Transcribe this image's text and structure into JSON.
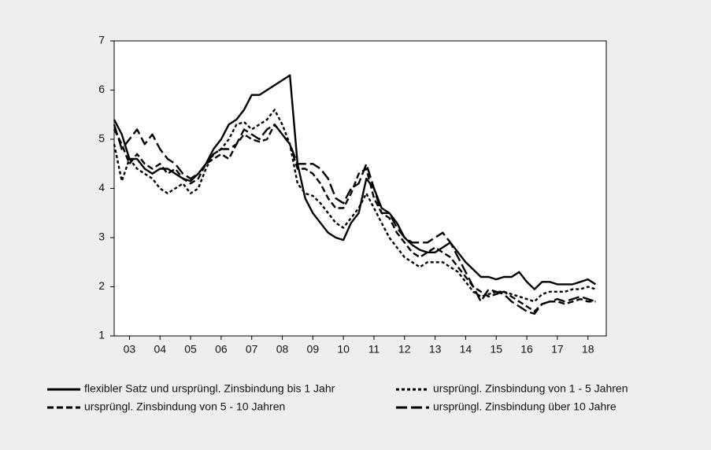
{
  "chart_data": {
    "type": "line",
    "x": [
      2003,
      2003.25,
      2003.5,
      2003.75,
      2004,
      2004.25,
      2004.5,
      2004.75,
      2005,
      2005.25,
      2005.5,
      2005.75,
      2006,
      2006.25,
      2006.5,
      2006.75,
      2007,
      2007.25,
      2007.5,
      2007.75,
      2008,
      2008.25,
      2008.5,
      2008.75,
      2009,
      2009.25,
      2009.5,
      2009.75,
      2010,
      2010.25,
      2010.5,
      2010.75,
      2011,
      2011.25,
      2011.5,
      2011.75,
      2012,
      2012.25,
      2012.5,
      2012.75,
      2013,
      2013.25,
      2013.5,
      2013.75,
      2014,
      2014.25,
      2014.5,
      2014.75,
      2015,
      2015.25,
      2015.5,
      2015.75,
      2016,
      2016.25,
      2016.5,
      2016.75,
      2017,
      2017.25,
      2017.5,
      2017.75,
      2018,
      2018.25,
      2018.5,
      2018.75
    ],
    "series": [
      {
        "name": "flexibler Satz und ursprüngl. Zinsbindung bis 1 Jahr",
        "color": "#000000",
        "dash": "solid",
        "values": [
          5.4,
          5.1,
          4.6,
          4.6,
          4.4,
          4.3,
          4.4,
          4.4,
          4.3,
          4.2,
          4.15,
          4.3,
          4.5,
          4.8,
          5.0,
          5.3,
          5.4,
          5.6,
          5.9,
          5.9,
          6.0,
          6.1,
          6.2,
          6.3,
          4.5,
          3.8,
          3.5,
          3.3,
          3.1,
          3.0,
          2.95,
          3.3,
          3.5,
          4.2,
          4.0,
          3.6,
          3.5,
          3.3,
          3.0,
          2.85,
          2.75,
          2.7,
          2.7,
          2.8,
          2.9,
          2.7,
          2.5,
          2.35,
          2.2,
          2.2,
          2.15,
          2.2,
          2.2,
          2.3,
          2.1,
          1.95,
          2.1,
          2.1,
          2.05,
          2.05,
          2.05,
          2.1,
          2.15,
          2.05
        ]
      },
      {
        "name": "ursprüngl. Zinsbindung von 1 - 5 Jahren",
        "color": "#000000",
        "dash": "short",
        "values": [
          4.9,
          4.15,
          4.6,
          4.4,
          4.3,
          4.2,
          4.0,
          3.9,
          4.0,
          4.1,
          3.9,
          4.0,
          4.4,
          4.7,
          4.8,
          5.0,
          5.3,
          5.35,
          5.2,
          5.3,
          5.4,
          5.6,
          5.3,
          4.9,
          4.1,
          3.9,
          3.85,
          3.7,
          3.5,
          3.3,
          3.2,
          3.4,
          3.6,
          3.9,
          3.6,
          3.3,
          3.0,
          2.8,
          2.6,
          2.5,
          2.4,
          2.5,
          2.5,
          2.5,
          2.4,
          2.3,
          2.1,
          1.9,
          1.8,
          1.85,
          1.9,
          1.9,
          1.85,
          1.8,
          1.75,
          1.7,
          1.85,
          1.9,
          1.9,
          1.9,
          1.95,
          1.95,
          2.0,
          1.95
        ]
      },
      {
        "name": "ursprüngl. Zinsbindung von 5 - 10 Jahren",
        "color": "#000000",
        "dash": "medium",
        "values": [
          5.2,
          4.9,
          4.5,
          4.7,
          4.5,
          4.4,
          4.5,
          4.3,
          4.4,
          4.2,
          4.1,
          4.2,
          4.5,
          4.6,
          4.7,
          4.6,
          4.9,
          5.1,
          5.0,
          4.95,
          5.0,
          5.3,
          5.1,
          4.9,
          4.4,
          4.4,
          4.3,
          4.1,
          3.8,
          3.6,
          3.6,
          3.9,
          4.3,
          4.4,
          3.8,
          3.5,
          3.4,
          3.1,
          2.9,
          2.7,
          2.6,
          2.7,
          2.8,
          2.7,
          2.6,
          2.4,
          2.2,
          2.0,
          1.9,
          1.8,
          1.85,
          1.9,
          1.8,
          1.7,
          1.6,
          1.5,
          1.65,
          1.7,
          1.7,
          1.65,
          1.7,
          1.75,
          1.7,
          1.7
        ]
      },
      {
        "name": "ursprüngl. Zinsbindung über 10 Jahre",
        "color": "#000000",
        "dash": "long",
        "values": [
          5.3,
          4.8,
          5.0,
          5.2,
          4.9,
          5.1,
          4.8,
          4.6,
          4.5,
          4.3,
          4.2,
          4.3,
          4.5,
          4.7,
          4.8,
          4.8,
          4.9,
          5.2,
          5.1,
          5.0,
          5.2,
          5.3,
          5.1,
          4.9,
          4.5,
          4.5,
          4.5,
          4.4,
          4.2,
          3.8,
          3.7,
          4.0,
          4.1,
          4.5,
          4.0,
          3.5,
          3.5,
          3.2,
          3.0,
          2.9,
          2.9,
          2.9,
          3.0,
          3.1,
          2.9,
          2.6,
          2.3,
          2.0,
          1.7,
          1.95,
          1.9,
          1.85,
          1.7,
          1.6,
          1.5,
          1.45,
          1.65,
          1.7,
          1.75,
          1.7,
          1.75,
          1.8,
          1.75,
          1.7
        ]
      }
    ],
    "xlim": [
      2003,
      2019.1
    ],
    "xticks": [
      {
        "value": 2003.5,
        "label": "03"
      },
      {
        "value": 2004.5,
        "label": "04"
      },
      {
        "value": 2005.5,
        "label": "05"
      },
      {
        "value": 2006.5,
        "label": "06"
      },
      {
        "value": 2007.5,
        "label": "07"
      },
      {
        "value": 2008.5,
        "label": "08"
      },
      {
        "value": 2009.5,
        "label": "09"
      },
      {
        "value": 2010.5,
        "label": "10"
      },
      {
        "value": 2011.5,
        "label": "11"
      },
      {
        "value": 2012.5,
        "label": "12"
      },
      {
        "value": 2013.5,
        "label": "13"
      },
      {
        "value": 2014.5,
        "label": "14"
      },
      {
        "value": 2015.5,
        "label": "15"
      },
      {
        "value": 2016.5,
        "label": "16"
      },
      {
        "value": 2017.5,
        "label": "17"
      },
      {
        "value": 2018.5,
        "label": "18"
      }
    ],
    "ylim": [
      1,
      7
    ],
    "yticks": [
      1,
      2,
      3,
      4,
      5,
      6,
      7
    ],
    "grid": false
  }
}
